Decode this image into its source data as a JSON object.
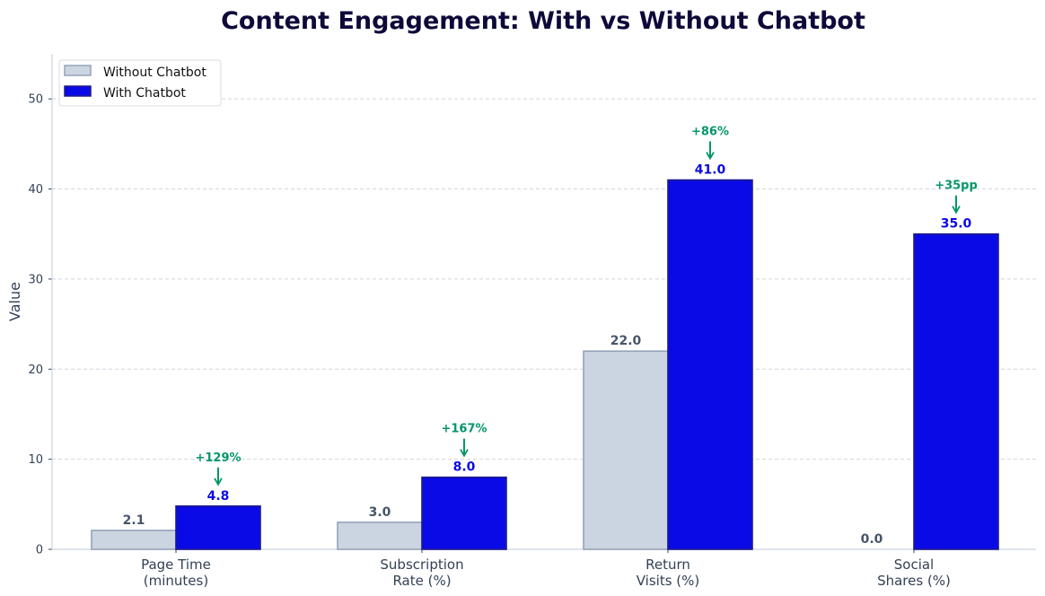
{
  "chart_data": {
    "type": "bar",
    "title": "Content Engagement: With vs Without Chatbot",
    "xlabel": "",
    "ylabel": "Value",
    "ylim": [
      0,
      55
    ],
    "yticks": [
      0,
      10,
      20,
      30,
      40,
      50
    ],
    "grid": true,
    "legend_position": "top-left",
    "categories": [
      [
        "Page Time",
        "(minutes)"
      ],
      [
        "Subscription",
        "Rate (%)"
      ],
      [
        "Return",
        "Visits (%)"
      ],
      [
        "Social",
        "Shares (%)"
      ]
    ],
    "series": [
      {
        "name": "Without Chatbot",
        "values": [
          2.1,
          3.0,
          22.0,
          0.0
        ],
        "labels": [
          "2.1",
          "3.0",
          "22.0",
          "0.0"
        ],
        "color": "#cbd5e1",
        "edge": "#94a3b8",
        "label_color": "#475569"
      },
      {
        "name": "With Chatbot",
        "values": [
          4.8,
          8.0,
          41.0,
          35.0
        ],
        "labels": [
          "4.8",
          "8.0",
          "41.0",
          "35.0"
        ],
        "color": "#0a0ae6",
        "edge": "#1e1b8a",
        "label_color": "#0a0ae6"
      }
    ],
    "annotations": [
      "+129%",
      "+167%",
      "+86%",
      "+35pp"
    ],
    "annotation_color": "#059669"
  }
}
